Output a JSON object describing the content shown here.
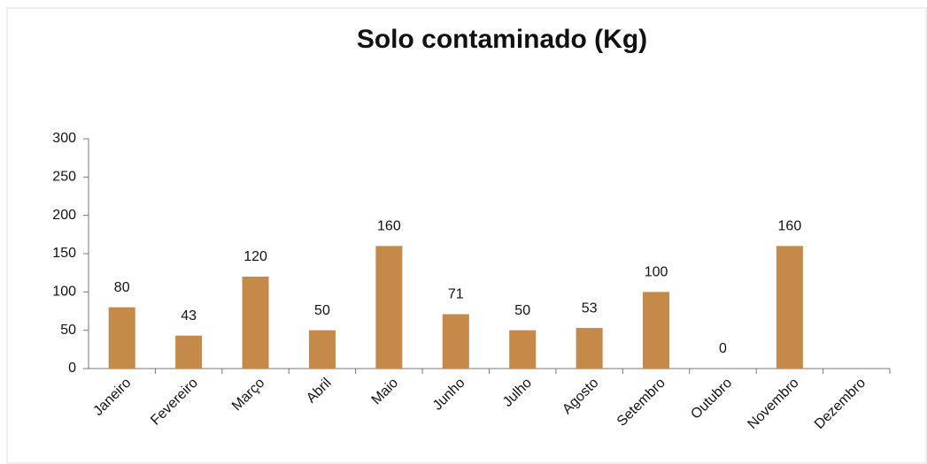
{
  "chart_data": {
    "type": "bar",
    "title": "Solo contaminado (Kg)",
    "categories": [
      "Janeiro",
      "Fevereiro",
      "Março",
      "Abril",
      "Maio",
      "Junho",
      "Julho",
      "Agosto",
      "Setembro",
      "Outubro",
      "Novembro",
      "Dezembro"
    ],
    "values": [
      80,
      43,
      120,
      50,
      160,
      71,
      50,
      53,
      100,
      0,
      160,
      null
    ],
    "color": "#c5894a",
    "ylim": [
      0,
      300
    ],
    "yticks": [
      0,
      50,
      100,
      150,
      200,
      250,
      300
    ],
    "grid": false
  }
}
